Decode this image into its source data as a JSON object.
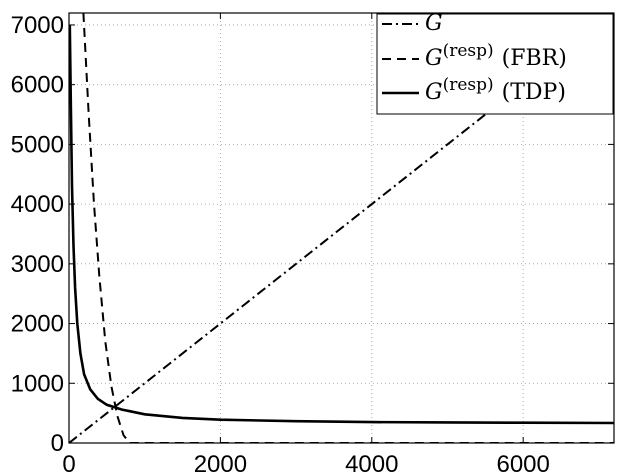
{
  "chart_data": {
    "type": "line",
    "title": "",
    "xlabel": "",
    "ylabel": "",
    "xlim": [
      0,
      7200
    ],
    "ylim": [
      0,
      7200
    ],
    "grid": true,
    "legend_position": "top-right",
    "x_ticks": [
      0,
      2000,
      4000,
      6000
    ],
    "x_tick_labels": [
      "0",
      "2000",
      "4000",
      "6000"
    ],
    "y_ticks": [
      0,
      1000,
      2000,
      3000,
      4000,
      5000,
      6000,
      7000
    ],
    "y_tick_labels": [
      "0",
      "1000",
      "2000",
      "3000",
      "4000",
      "5000",
      "6000",
      "7000"
    ],
    "series": [
      {
        "name": "G",
        "style": "dashdot",
        "x": [
          0,
          7200
        ],
        "y": [
          0,
          7200
        ]
      },
      {
        "name": "G(resp) (FBR)",
        "style": "dashed",
        "x": [
          190,
          260,
          330,
          400,
          480,
          560,
          640,
          720,
          800,
          7200
        ],
        "y": [
          7200,
          5500,
          4000,
          2800,
          1700,
          950,
          450,
          130,
          0,
          0
        ]
      },
      {
        "name": "G(resp) (TDP)",
        "style": "solid",
        "x": [
          10,
          25,
          40,
          60,
          80,
          110,
          150,
          200,
          280,
          380,
          500,
          700,
          1000,
          1500,
          2000,
          3000,
          4000,
          5000,
          6000,
          7200
        ],
        "y": [
          7000,
          5600,
          4300,
          3300,
          2600,
          2000,
          1500,
          1150,
          900,
          740,
          640,
          560,
          480,
          420,
          390,
          365,
          350,
          345,
          340,
          335
        ]
      }
    ]
  },
  "legend": {
    "entries": [
      {
        "main": "G",
        "sup": "",
        "suffix": ""
      },
      {
        "main": "G",
        "sup": "(resp)",
        "suffix": "(FBR)"
      },
      {
        "main": "G",
        "sup": "(resp)",
        "suffix": "(TDP)"
      }
    ]
  }
}
